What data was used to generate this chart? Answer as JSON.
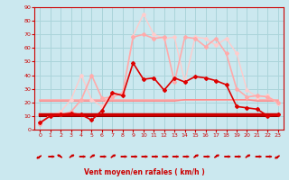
{
  "bg_color": "#cbe8ef",
  "grid_color": "#aad4da",
  "xlabel": "Vent moyen/en rafales ( km/h )",
  "xlabel_color": "#cc0000",
  "tick_color": "#cc0000",
  "xlim": [
    -0.5,
    23.5
  ],
  "ylim": [
    0,
    90
  ],
  "yticks": [
    0,
    10,
    20,
    30,
    40,
    50,
    60,
    70,
    80,
    90
  ],
  "xticks": [
    0,
    1,
    2,
    3,
    4,
    5,
    6,
    7,
    8,
    9,
    10,
    11,
    12,
    13,
    14,
    15,
    16,
    17,
    18,
    19,
    20,
    21,
    22,
    23
  ],
  "series": [
    {
      "x": [
        0,
        1,
        2,
        3,
        4,
        5,
        6,
        7,
        8,
        9,
        10,
        11,
        12,
        13,
        14,
        15,
        16,
        17,
        18,
        19,
        20,
        21,
        22,
        23
      ],
      "y": [
        11,
        11,
        11,
        11,
        11,
        11,
        11,
        11,
        11,
        11,
        11,
        11,
        11,
        11,
        11,
        11,
        11,
        11,
        11,
        11,
        11,
        11,
        11,
        11
      ],
      "color": "#cc0000",
      "lw": 2.5,
      "marker": null,
      "zorder": 5
    },
    {
      "x": [
        0,
        1,
        2,
        3,
        4,
        5,
        6,
        7,
        8,
        9,
        10,
        11,
        12,
        13,
        14,
        15,
        16,
        17,
        18,
        19,
        20,
        21,
        22,
        23
      ],
      "y": [
        10,
        10,
        10,
        10,
        10,
        10,
        10,
        10,
        10,
        10,
        10,
        10,
        10,
        10,
        10,
        10,
        10,
        10,
        10,
        10,
        10,
        10,
        10,
        10
      ],
      "color": "#880000",
      "lw": 1.5,
      "marker": null,
      "zorder": 4
    },
    {
      "x": [
        0,
        1,
        2,
        3,
        4,
        5,
        6,
        7,
        8,
        9,
        10,
        11,
        12,
        13,
        14,
        15,
        16,
        17,
        18,
        19,
        20,
        21,
        22,
        23
      ],
      "y": [
        22,
        22,
        22,
        22,
        22,
        22,
        22,
        22,
        22,
        22,
        22,
        22,
        22,
        22,
        22,
        22,
        22,
        22,
        22,
        22,
        22,
        22,
        22,
        22
      ],
      "color": "#ffaaaa",
      "lw": 1.2,
      "marker": null,
      "zorder": 3
    },
    {
      "x": [
        0,
        1,
        2,
        3,
        4,
        5,
        6,
        7,
        8,
        9,
        10,
        11,
        12,
        13,
        14,
        15,
        16,
        17,
        18,
        19,
        20,
        21,
        22,
        23
      ],
      "y": [
        21,
        21,
        21,
        21,
        21,
        21,
        21,
        21,
        21,
        21,
        21,
        21,
        21,
        21,
        22,
        22,
        22,
        22,
        22,
        22,
        22,
        21,
        21,
        21
      ],
      "color": "#ff8888",
      "lw": 1.0,
      "marker": null,
      "zorder": 3
    },
    {
      "x": [
        0,
        1,
        2,
        3,
        4,
        5,
        6,
        7,
        8,
        9,
        10,
        11,
        12,
        13,
        14,
        15,
        16,
        17,
        18,
        19,
        20,
        21,
        22,
        23
      ],
      "y": [
        5,
        10,
        11,
        12,
        11,
        7,
        14,
        27,
        25,
        49,
        37,
        38,
        29,
        38,
        35,
        39,
        38,
        36,
        33,
        17,
        16,
        15,
        10,
        11
      ],
      "color": "#dd0000",
      "lw": 1.2,
      "marker": "D",
      "ms": 2,
      "zorder": 6
    },
    {
      "x": [
        0,
        1,
        2,
        3,
        4,
        5,
        6,
        7,
        8,
        9,
        10,
        11,
        12,
        13,
        14,
        15,
        16,
        17,
        18,
        19,
        20,
        21,
        22,
        23
      ],
      "y": [
        4,
        11,
        11,
        13,
        22,
        40,
        23,
        24,
        27,
        68,
        70,
        67,
        68,
        35,
        68,
        67,
        61,
        67,
        56,
        30,
        24,
        25,
        24,
        20
      ],
      "color": "#ffaaaa",
      "lw": 1.2,
      "marker": "D",
      "ms": 2,
      "zorder": 4
    },
    {
      "x": [
        0,
        1,
        2,
        3,
        4,
        5,
        6,
        7,
        8,
        9,
        10,
        11,
        12,
        13,
        14,
        15,
        16,
        17,
        18,
        19,
        20,
        21,
        22,
        23
      ],
      "y": [
        11,
        11,
        13,
        22,
        40,
        22,
        17,
        27,
        26,
        69,
        85,
        70,
        67,
        68,
        35,
        68,
        67,
        62,
        67,
        56,
        29,
        24,
        25,
        19
      ],
      "color": "#ffcccc",
      "lw": 1.0,
      "marker": "D",
      "ms": 2,
      "zorder": 3
    }
  ],
  "arrow_color": "#cc0000",
  "arrow_angles": [
    225,
    90,
    315,
    45,
    90,
    45,
    90,
    45,
    90,
    90,
    90,
    90,
    90,
    90,
    90,
    45,
    90,
    45,
    90,
    90,
    45,
    90,
    90,
    225
  ]
}
